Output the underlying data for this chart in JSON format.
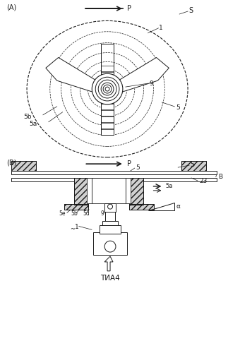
{
  "bg_color": "#ffffff",
  "line_color": "#1a1a1a",
  "fig_width": 3.23,
  "fig_height": 5.0,
  "dpi": 100,
  "panel_A_label": "(A)",
  "panel_B_label": "(B)",
  "label_P": "P",
  "label_S": "S",
  "label_B": "B",
  "label_23": "23",
  "label_1_A": "1",
  "label_9_A": "9",
  "label_5_A": "5",
  "label_5b_A": "5b",
  "label_5a_A": "5a",
  "label_S_B": "S",
  "label_5_B": "5",
  "label_5a_B": "5a",
  "label_5e_B": "5e",
  "label_5b_B": "5b",
  "label_5d_B": "5d",
  "label_9_B": "9",
  "label_1_B": "1",
  "label_alpha": "α",
  "caption": "ΤИА4"
}
